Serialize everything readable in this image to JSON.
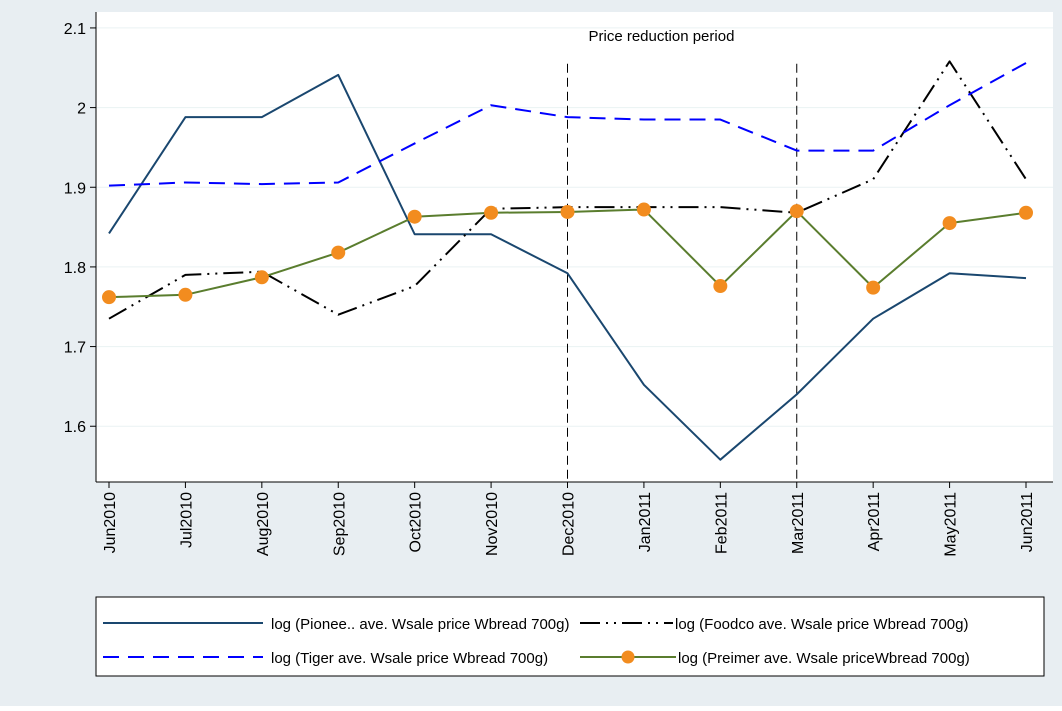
{
  "chart_data": {
    "type": "line",
    "title": "",
    "xlabel": "",
    "ylabel": "",
    "ylim": [
      1.53,
      2.12
    ],
    "y_ticks": [
      1.6,
      1.7,
      1.8,
      1.9,
      2,
      2.1
    ],
    "y_tick_labels": [
      "1.6",
      "1.7",
      "1.8",
      "1.9",
      "2",
      "2.1"
    ],
    "categories": [
      "Jun2010",
      "Jul2010",
      "Aug2010",
      "Sep2010",
      "Oct2010",
      "Nov2010",
      "Dec2010",
      "Jan2011",
      "Feb2011",
      "Mar2011",
      "Apr2011",
      "May2011",
      "Jun2011"
    ],
    "grid": "horizontal",
    "legend_position": "bottom",
    "background_color": "#e8eef2",
    "plot_background_color": "#ffffff",
    "reference_lines": [
      {
        "at": "Dec2010"
      },
      {
        "at": "Mar2011"
      }
    ],
    "annotations": [
      {
        "text": "Price reduction period",
        "x": "Dec2010",
        "y": 2.09
      }
    ],
    "series": [
      {
        "name": "log (Pionee.. ave. Wsale price Wbread 700g)",
        "color": "#1a476f",
        "style": "solid",
        "marker": "none",
        "values": [
          1.842,
          1.988,
          1.988,
          2.041,
          1.841,
          1.841,
          1.792,
          1.652,
          1.558,
          1.64,
          1.735,
          1.792,
          1.786
        ]
      },
      {
        "name": "log (Foodco ave. Wsale price Wbread 700g)",
        "color": "#000000",
        "style": "dash-dot",
        "marker": "none",
        "values": [
          1.735,
          1.79,
          1.794,
          1.74,
          1.776,
          1.873,
          1.875,
          1.875,
          1.875,
          1.868,
          1.91,
          2.058,
          1.91
        ]
      },
      {
        "name": "log (Tiger ave. Wsale price Wbread 700g)",
        "color": "#0000ff",
        "style": "dashed",
        "marker": "none",
        "values": [
          1.902,
          1.906,
          1.904,
          1.906,
          1.955,
          2.003,
          1.988,
          1.985,
          1.985,
          1.946,
          1.946,
          2.003,
          2.056
        ]
      },
      {
        "name": "log (Preimer ave. Wsale priceWbread 700g)",
        "color": "#5a7d2e",
        "style": "solid",
        "marker": "circle",
        "marker_color": "#f28c1f",
        "values": [
          1.762,
          1.765,
          1.787,
          1.818,
          1.863,
          1.868,
          1.869,
          1.872,
          1.776,
          1.87,
          1.774,
          1.855,
          1.868
        ]
      }
    ]
  }
}
